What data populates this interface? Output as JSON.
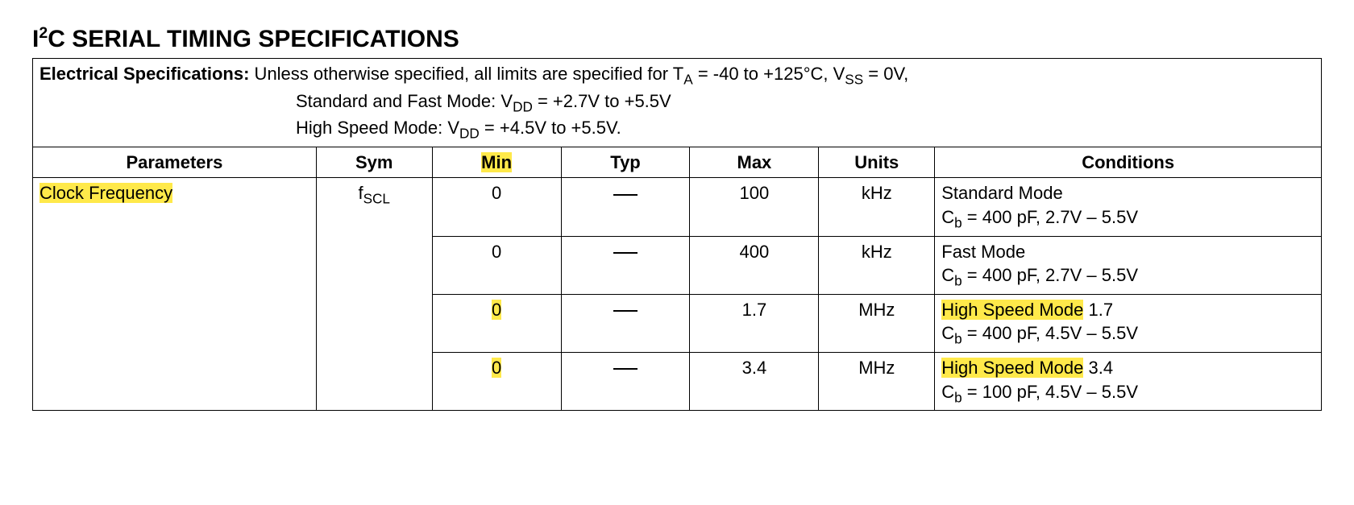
{
  "title_prefix": "I",
  "title_super": "2",
  "title_rest": "C SERIAL TIMING SPECIFICATIONS",
  "intro": {
    "label": "Electrical Specifications:",
    "line1_rest": " Unless otherwise specified, all limits are specified for T",
    "line1_sub1": "A",
    "line1_mid": " = -40 to +125°C, V",
    "line1_sub2": "SS",
    "line1_end": " = 0V,",
    "line2_a": "Standard and Fast Mode: V",
    "line2_sub": "DD",
    "line2_b": " = +2.7V to +5.5V",
    "line3_a": "High Speed Mode: V",
    "line3_sub": "DD",
    "line3_b": " = +4.5V to +5.5V."
  },
  "headers": {
    "param": "Parameters",
    "sym": "Sym",
    "min": "Min",
    "typ": "Typ",
    "max": "Max",
    "units": "Units",
    "cond": "Conditions"
  },
  "param_label": "Clock Frequency",
  "sym_pre": "f",
  "sym_sub": "SCL",
  "rows": [
    {
      "min": "0",
      "min_hl": false,
      "max": "100",
      "units": "kHz",
      "cond_l1": "Standard Mode",
      "cond_l1_hl": false,
      "cond_cb_pre": "C",
      "cond_cb_sub": "b",
      "cond_l2_rest": " = 400 pF, 2.7V – 5.5V"
    },
    {
      "min": "0",
      "min_hl": false,
      "max": "400",
      "units": "kHz",
      "cond_l1": "Fast Mode",
      "cond_l1_hl": false,
      "cond_cb_pre": "C",
      "cond_cb_sub": "b",
      "cond_l2_rest": " = 400 pF, 2.7V – 5.5V"
    },
    {
      "min": "0",
      "min_hl": true,
      "max": "1.7",
      "units": "MHz",
      "cond_l1": "High Speed Mode",
      "cond_l1_hl": true,
      "cond_l1_extra": " 1.7",
      "cond_cb_pre": "C",
      "cond_cb_sub": "b",
      "cond_l2_rest": " = 400 pF, 4.5V – 5.5V"
    },
    {
      "min": "0",
      "min_hl": true,
      "max": "3.4",
      "units": "MHz",
      "cond_l1": "High Speed Mode",
      "cond_l1_hl": true,
      "cond_l1_extra": " 3.4",
      "cond_cb_pre": "C",
      "cond_cb_sub": "b",
      "cond_l2_rest": " = 100 pF, 4.5V – 5.5V"
    }
  ],
  "highlight_color": "#ffe94a"
}
